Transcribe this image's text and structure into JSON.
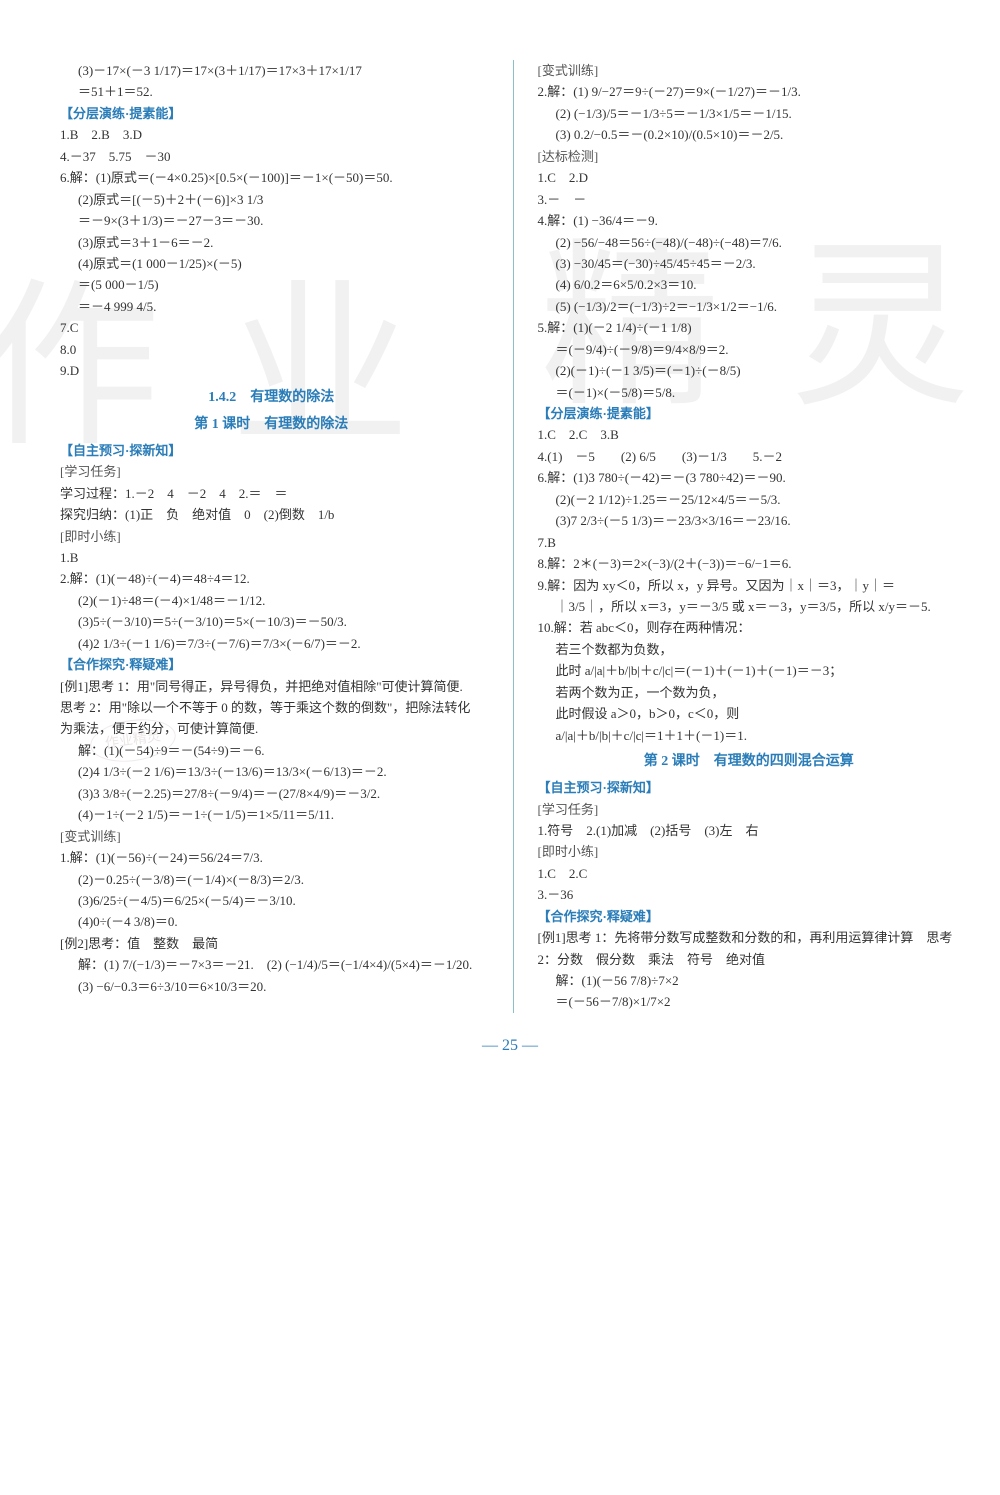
{
  "watermarks": [
    "作",
    "业",
    "精",
    "灵"
  ],
  "stamp": "作业精灵",
  "page_number": "— 25 —",
  "left": {
    "line1": "(3)－17×(－3 1/17)＝17×(3＋1/17)＝17×3＋17×1/17",
    "line2": "＝51＋1＝52.",
    "sec1": "【分层演练·提素能】",
    "a1": "1.B　2.B　3.D",
    "a2": "4.－37　5.75　－30",
    "a3": "6.解：(1)原式＝(－4×0.25)×[0.5×(－100)]＝－1×(－50)＝50.",
    "a4": "(2)原式＝[(－5)＋2＋(－6)]×3 1/3",
    "a5": "＝－9×(3＋1/3)＝－27－3＝－30.",
    "a6": "(3)原式＝3＋1－6＝－2.",
    "a7": "(4)原式＝(1 000－1/25)×(－5)",
    "a8": "＝(5 000－1/5)",
    "a9": "＝－4 999 4/5.",
    "a10": "7.C",
    "a11": "8.0",
    "a12": "9.D",
    "heading1": "1.4.2　有理数的除法",
    "heading2": "第 1 课时　有理数的除法",
    "sec2": "【自主预习·探新知】",
    "label1": "[学习任务]",
    "b1": "学习过程：1.－2　4　－2　4　2.＝　＝",
    "b2": "探究归纳：(1)正　负　绝对值　0　(2)倒数　1/b",
    "label2": "[即时小练]",
    "b3": "1.B",
    "b4": "2.解：(1)(－48)÷(－4)＝48÷4＝12.",
    "b5": "(2)(－1)÷48＝(－4)×1/48＝－1/12.",
    "b6": "(3)5÷(－3/10)＝5÷(－3/10)＝5×(－10/3)＝－50/3.",
    "b7": "(4)2 1/3÷(－1 1/6)＝7/3÷(－7/6)＝7/3×(－6/7)＝－2.",
    "sec3": "【合作探究·释疑难】",
    "c1": "[例1]思考 1：用\"同号得正，异号得负，并把绝对值相除\"可使计算简便.",
    "c2": "思考 2：用\"除以一个不等于 0 的数，等于乘这个数的倒数\"，把除法转化为乘法，便于约分，可使计算简便.",
    "c3": "解：(1)(－54)÷9＝－(54÷9)＝－6.",
    "c4": "(2)4 1/3÷(－2 1/6)＝13/3÷(－13/6)＝13/3×(－6/13)＝－2.",
    "c5": "(3)3 3/8÷(－2.25)＝27/8÷(－9/4)＝－(27/8×4/9)＝－3/2.",
    "c6": "(4)－1÷(－2 1/5)＝－1÷(－1/5)＝1×5/11＝5/11.",
    "label3": "[变式训练]",
    "d1": "1.解：(1)(－56)÷(－24)＝56/24＝7/3.",
    "d2": "(2)－0.25÷(－3/8)＝(－1/4)×(－8/3)＝2/3.",
    "d3": "(3)6/25÷(－4/5)＝6/25×(－5/4)＝－3/10.",
    "d4": "(4)0÷(－4 3/8)＝0.",
    "e1": "[例2]思考：值　整数　最简",
    "e2": "解：(1) 7/(−1/3)＝－7×3＝－21.　(2) (−1/4)/5＝(−1/4×4)/(5×4)＝－1/20.",
    "e3": "(3) −6/−0.3＝6÷3/10＝6×10/3＝20."
  },
  "right": {
    "label1": "[变式训练]",
    "a1": "2.解：(1) 9/−27＝9÷(－27)＝9×(－1/27)＝－1/3.",
    "a2": "(2) (−1/3)/5＝－1/3÷5＝－1/3×1/5＝－1/15.",
    "a3": "(3) 0.2/−0.5＝－(0.2×10)/(0.5×10)＝－2/5.",
    "label2": "[达标检测]",
    "b1": "1.C　2.D",
    "b2": "3.－　－",
    "b3": "4.解：(1) −36/4＝－9.",
    "b4": "(2) −56/−48＝56÷(−48)/(−48)÷(−48)＝7/6.",
    "b5": "(3) −30/45＝(−30)÷45/45÷45＝－2/3.",
    "b6": "(4) 6/0.2＝6×5/0.2×3＝10.",
    "b7": "(5) (−1/3)/2＝(−1/3)÷2＝−1/3×1/2＝−1/6.",
    "c1": "5.解：(1)(－2 1/4)÷(－1 1/8)",
    "c2": "＝(－9/4)÷(－9/8)＝9/4×8/9＝2.",
    "c3": "(2)(－1)÷(－1 3/5)＝(－1)÷(－8/5)",
    "c4": "＝(－1)×(－5/8)＝5/8.",
    "sec1": "【分层演练·提素能】",
    "d1": "1.C　2.C　3.B",
    "d2": "4.(1)　－5　　(2) 6/5　　(3)－1/3　　5.－2",
    "d3": "6.解：(1)3 780÷(－42)＝－(3 780÷42)＝－90.",
    "d4": "(2)(－2 1/12)÷1.25＝－25/12×4/5＝－5/3.",
    "d5": "(3)7 2/3÷(－5 1/3)＝－23/3×3/16＝－23/16.",
    "d6": "7.B",
    "d7": "8.解：2＊(－3)＝2×(−3)/(2＋(−3))＝−6/−1＝6.",
    "d8": "9.解：因为 xy＜0，所以 x，y 异号。又因为｜x｜＝3，｜y｜＝",
    "d9": "｜3/5｜，所以 x＝3，y＝－3/5 或 x＝－3，y＝3/5，所以 x/y＝－5.",
    "e1": "10.解：若 abc＜0，则存在两种情况：",
    "e2": "若三个数都为负数，",
    "e3": "此时 a/|a|＋b/|b|＋c/|c|＝(－1)＋(－1)＋(－1)＝－3；",
    "e4": "若两个数为正，一个数为负，",
    "e5": "此时假设 a＞0，b＞0，c＜0，则",
    "e6": "a/|a|＋b/|b|＋c/|c|＝1＋1＋(－1)＝1.",
    "heading1": "第 2 课时　有理数的四则混合运算",
    "sec2": "【自主预习·探新知】",
    "label3": "[学习任务]",
    "f1": "1.符号　2.(1)加减　(2)括号　(3)左　右",
    "label4": "[即时小练]",
    "f2": "1.C　2.C",
    "f3": "3.－36",
    "sec3": "【合作探究·释疑难】",
    "g1": "[例1]思考 1：先将带分数写成整数和分数的和，再利用运算律计算　思考 2：分数　假分数　乘法　符号　绝对值",
    "g2": "解：(1)(－56 7/8)÷7×2",
    "g3": "＝(－56－7/8)×1/7×2"
  }
}
